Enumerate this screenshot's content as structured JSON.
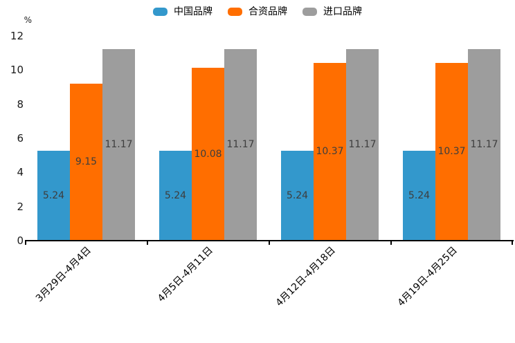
{
  "chart_data": {
    "type": "bar",
    "title": "",
    "unit_label": "%",
    "categories": [
      "3月29日-4月4日",
      "4月5日-4月11日",
      "4月12日-4月18日",
      "4月19日-4月25日"
    ],
    "series": [
      {
        "name": "中国品牌",
        "color": "#3398CC",
        "values": [
          5.24,
          5.24,
          5.24,
          5.24
        ]
      },
      {
        "name": "合资品牌",
        "color": "#FF6E00",
        "values": [
          9.15,
          10.08,
          10.37,
          10.37
        ]
      },
      {
        "name": "进口品牌",
        "color": "#9D9D9D",
        "values": [
          11.17,
          11.17,
          11.17,
          11.17
        ]
      }
    ],
    "ylim": [
      0,
      12
    ],
    "yticks": [
      0,
      2,
      4,
      6,
      8,
      10,
      12
    ],
    "grid": false,
    "legend_position": "top-center",
    "value_labels": true,
    "value_label_color": "#3D3D3D",
    "axis_color": "#000000",
    "tick_label_color": "#1A1A1A"
  }
}
